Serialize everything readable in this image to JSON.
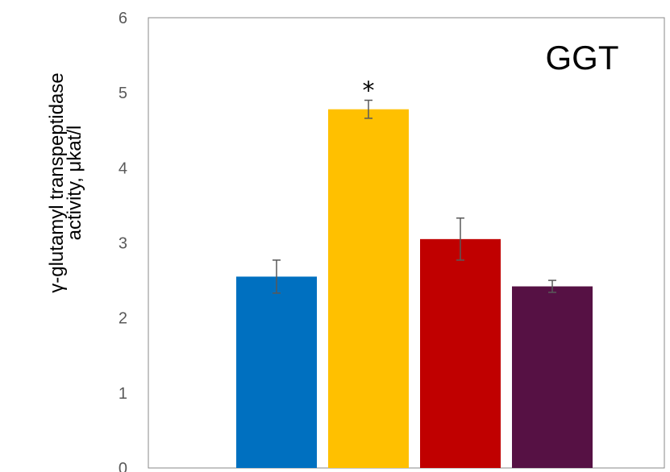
{
  "chart_data": {
    "type": "bar",
    "title": "GGT",
    "ylabel_line1": "γ-glutamyl transpeptidase",
    "ylabel_line2": "activity, μkat/l",
    "xlabel": "",
    "ylim": [
      0,
      6
    ],
    "yticks": [
      "0",
      "1",
      "2",
      "3",
      "4",
      "5",
      "6"
    ],
    "grid": false,
    "legend": "none",
    "bars": [
      {
        "value": 2.55,
        "error": 0.22,
        "color": "#0070C0",
        "annotation": ""
      },
      {
        "value": 4.78,
        "error": 0.12,
        "color": "#FFC000",
        "annotation": "*"
      },
      {
        "value": 3.05,
        "error": 0.28,
        "color": "#C00000",
        "annotation": ""
      },
      {
        "value": 2.42,
        "error": 0.08,
        "color": "#561144",
        "annotation": ""
      }
    ]
  }
}
